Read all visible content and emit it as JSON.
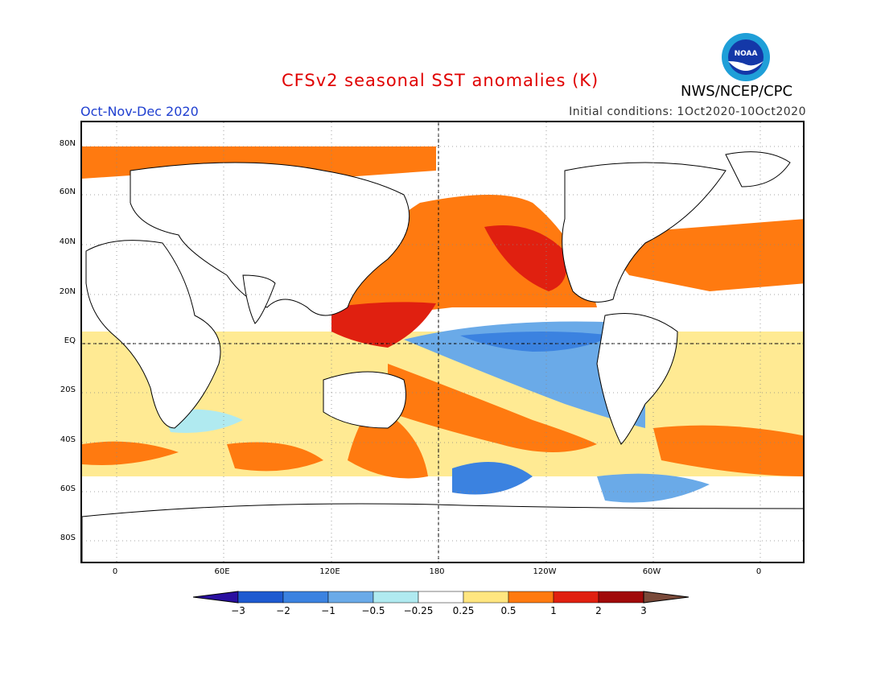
{
  "header": {
    "title": "CFSv2 seasonal SST anomalies (K)",
    "season": "Oct-Nov-Dec 2020",
    "initial_conditions": "Initial conditions: 1Oct2020-10Oct2020",
    "agency": "NWS/NCEP/CPC",
    "logo_text": "NOAA"
  },
  "axes": {
    "lat_labels": [
      "80N",
      "60N",
      "40N",
      "20N",
      "EQ",
      "20S",
      "40S",
      "60S",
      "80S"
    ],
    "lon_labels": [
      "0",
      "60E",
      "120E",
      "180",
      "120W",
      "60W",
      "0"
    ]
  },
  "colorbar": {
    "labels": [
      "-3",
      "-2",
      "-1",
      "-0.5",
      "-0.25",
      "0.25",
      "0.5",
      "1",
      "2",
      "3"
    ],
    "colors": [
      "#2a10a0",
      "#1e5ad0",
      "#3b82e0",
      "#6aaae8",
      "#b0eaf0",
      "#ffffff",
      "#ffe680",
      "#ff7a10",
      "#e02010",
      "#a00a0a",
      "#7a4a3a"
    ]
  },
  "anomaly_colors": {
    "weak_cold": "#b0eaf0",
    "cold": "#6aaae8",
    "cold_mid": "#3b82e0",
    "cold_strong": "#1e5ad0",
    "very_cold": "#2a10a0",
    "weak_warm": "#ffe680",
    "warm": "#ff7a10",
    "warm_mid": "#e02010",
    "warm_strong": "#a00a0a",
    "extreme": "#7a4a3a"
  }
}
